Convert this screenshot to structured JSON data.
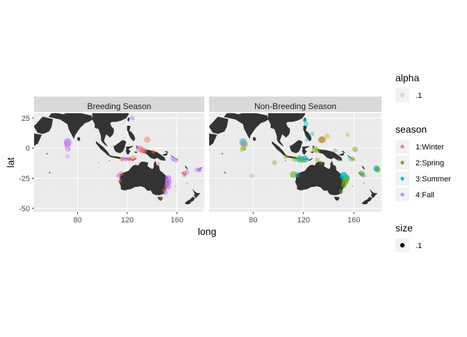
{
  "chart_data": {
    "type": "scatter",
    "subtype": "faceted-map",
    "xlabel": "long",
    "ylabel": "lat",
    "xlim": [
      45,
      182
    ],
    "ylim": [
      -53,
      29
    ],
    "x_ticks": [
      80,
      120,
      160
    ],
    "y_ticks": [
      25,
      0,
      -25,
      -50
    ],
    "grid": true,
    "legend_position": "right",
    "facets": [
      "Breeding Season",
      "Non-Breeding Season"
    ],
    "legends": {
      "alpha": {
        "title": "alpha",
        "label": ".1"
      },
      "season": {
        "title": "season",
        "items": [
          {
            "label": "1:Winter",
            "color": "#F8766D"
          },
          {
            "label": "2:Spring",
            "color": "#7CAE00"
          },
          {
            "label": "3:Summer",
            "color": "#00BFC4"
          },
          {
            "label": "4:Fall",
            "color": "#C77CFF"
          }
        ]
      },
      "size": {
        "title": "size",
        "label": ".1"
      }
    },
    "panels": [
      {
        "title": "Breeding Season",
        "points": [
          [
            72,
            5,
            4,
            0.75,
            5.5
          ],
          [
            72,
            3,
            4,
            0.6,
            5
          ],
          [
            72,
            -1,
            4,
            0.35,
            4
          ],
          [
            72,
            -7,
            4,
            0.3,
            3.5
          ],
          [
            71,
            1,
            1,
            0.3,
            3
          ],
          [
            124,
            25,
            4,
            0.55,
            3.5
          ],
          [
            131,
            -1,
            1,
            0.7,
            4.5
          ],
          [
            132,
            -2,
            1,
            0.6,
            4
          ],
          [
            129,
            0,
            4,
            0.45,
            4
          ],
          [
            134,
            -2,
            1,
            0.5,
            4
          ],
          [
            136,
            7,
            1,
            0.5,
            4.5
          ],
          [
            141,
            -3,
            1,
            0.4,
            3
          ],
          [
            116,
            -9,
            1,
            0.7,
            3.5
          ],
          [
            119,
            -9,
            4,
            0.7,
            3.5
          ],
          [
            122,
            -9,
            1,
            0.6,
            3.5
          ],
          [
            125,
            -8,
            1,
            0.5,
            3.5
          ],
          [
            113,
            -23,
            4,
            0.6,
            3.5
          ],
          [
            115,
            -21,
            1,
            0.5,
            3.5
          ],
          [
            114,
            -27,
            1,
            0.4,
            3
          ],
          [
            153,
            -25,
            4,
            0.65,
            4.5
          ],
          [
            153,
            -28,
            4,
            0.7,
            5
          ],
          [
            152,
            -31,
            1,
            0.55,
            4
          ],
          [
            153,
            -32,
            4,
            0.6,
            4.5
          ],
          [
            150,
            -35,
            1,
            0.45,
            3.5
          ],
          [
            151,
            -37,
            4,
            0.5,
            3.5
          ],
          [
            147,
            -42,
            1,
            0.4,
            3
          ],
          [
            145,
            -13,
            1,
            0.4,
            3
          ],
          [
            157,
            -9,
            4,
            0.65,
            3.5
          ],
          [
            159,
            -10,
            4,
            0.55,
            3.5
          ],
          [
            166,
            -21,
            1,
            0.65,
            3.5
          ],
          [
            168,
            -20,
            4,
            0.5,
            3.5
          ],
          [
            166,
            -23,
            1,
            0.4,
            3
          ],
          [
            178,
            -18,
            4,
            0.7,
            3.5
          ],
          [
            176,
            -18,
            4,
            0.5,
            3
          ]
        ]
      },
      {
        "title": "Non-Breeding Season",
        "points": [
          [
            72,
            5,
            3,
            0.55,
            5.5
          ],
          [
            73,
            3,
            2,
            0.5,
            5
          ],
          [
            72,
            0,
            2,
            0.35,
            4
          ],
          [
            72,
            4,
            4,
            0.45,
            4.5
          ],
          [
            71,
            -1,
            2,
            0.3,
            3.5
          ],
          [
            79,
            -23,
            2,
            0.25,
            3.5
          ],
          [
            97,
            -12,
            2,
            0.3,
            4
          ],
          [
            121,
            23,
            3,
            0.5,
            3.5
          ],
          [
            122,
            20,
            3,
            0.4,
            3.5
          ],
          [
            135,
            7,
            1,
            0.75,
            5
          ],
          [
            134,
            7,
            2,
            0.55,
            4.5
          ],
          [
            139,
            10,
            2,
            0.3,
            4
          ],
          [
            129,
            -1,
            2,
            0.55,
            4.5
          ],
          [
            131,
            -2,
            2,
            0.45,
            4
          ],
          [
            127,
            12,
            3,
            0.4,
            3
          ],
          [
            123,
            7,
            3,
            0.35,
            3
          ],
          [
            145,
            -2,
            2,
            0.35,
            3
          ],
          [
            117,
            -9,
            3,
            0.75,
            5
          ],
          [
            121,
            -9,
            3,
            0.7,
            5
          ],
          [
            119,
            -10,
            2,
            0.5,
            4
          ],
          [
            113,
            -9,
            2,
            0.45,
            4
          ],
          [
            106,
            -7,
            2,
            0.35,
            3.5
          ],
          [
            131,
            -10,
            2,
            0.4,
            3.5
          ],
          [
            134,
            -12,
            2,
            0.35,
            3
          ],
          [
            112,
            -22,
            2,
            0.6,
            5
          ],
          [
            115,
            -22,
            3,
            0.45,
            4
          ],
          [
            152,
            -23,
            3,
            0.8,
            5.5
          ],
          [
            154,
            -25,
            3,
            0.75,
            5
          ],
          [
            153,
            -28,
            2,
            0.7,
            5
          ],
          [
            152,
            -31,
            2,
            0.55,
            4
          ],
          [
            154,
            -26,
            2,
            0.6,
            4.5
          ],
          [
            150,
            -36,
            2,
            0.4,
            3.5
          ],
          [
            159,
            -9,
            2,
            0.45,
            3.5
          ],
          [
            157,
            -9,
            3,
            0.35,
            3
          ],
          [
            148,
            -10,
            2,
            0.3,
            3
          ],
          [
            166,
            -21,
            2,
            0.6,
            4
          ],
          [
            167,
            -22,
            3,
            0.5,
            3.5
          ],
          [
            168,
            -23,
            2,
            0.4,
            3
          ],
          [
            178,
            -17,
            3,
            0.75,
            4.5
          ],
          [
            179,
            -18,
            2,
            0.55,
            4
          ],
          [
            161,
            -1,
            2,
            0.5,
            4
          ],
          [
            155,
            11,
            2,
            0.3,
            3
          ]
        ]
      }
    ]
  }
}
